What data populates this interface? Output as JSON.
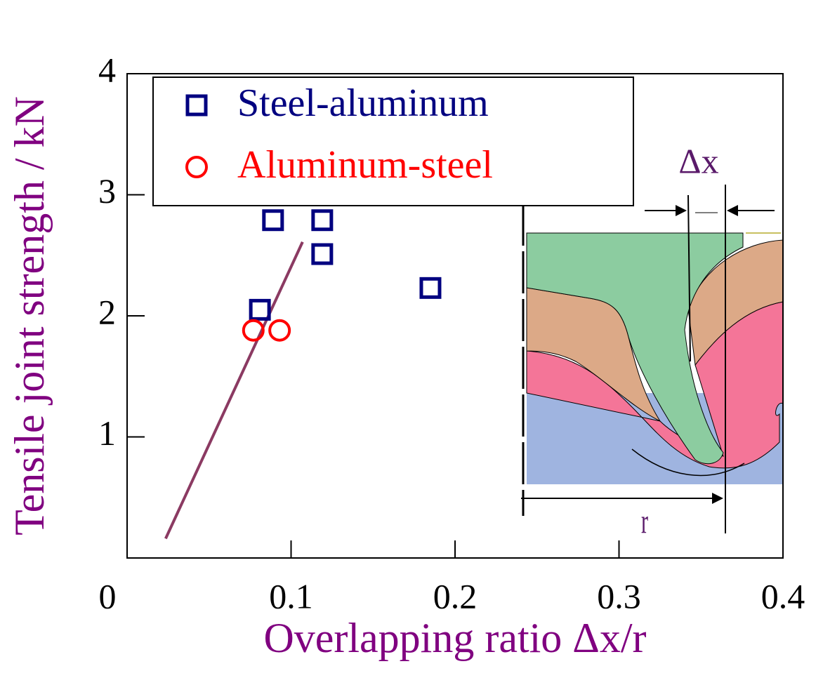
{
  "chart_data": {
    "type": "scatter",
    "xlabel": "Overlapping ratio Δx/r",
    "ylabel": "Tensile joint strength / kN",
    "xlim": [
      0,
      0.4
    ],
    "ylim": [
      0,
      4
    ],
    "xticks": [
      0,
      0.1,
      0.2,
      0.3,
      0.4
    ],
    "yticks": [
      1,
      2,
      3,
      4
    ],
    "series": [
      {
        "name": "Steel-aluminum",
        "color": "#000080",
        "marker": "square",
        "x": [
          0.089,
          0.119,
          0.119,
          0.185,
          0.081
        ],
        "values": [
          2.79,
          2.79,
          2.51,
          2.23,
          2.05
        ]
      },
      {
        "name": "Aluminum-steel",
        "color": "#ff0000",
        "marker": "circle",
        "x": [
          0.077,
          0.093
        ],
        "values": [
          1.88,
          1.88
        ]
      }
    ],
    "trend_line": {
      "color": "#8b3a62",
      "x": [
        0.0235,
        0.107
      ],
      "values": [
        0.16,
        2.61
      ]
    },
    "legend": "upper left",
    "annotations": [
      "Δx",
      "r"
    ]
  }
}
